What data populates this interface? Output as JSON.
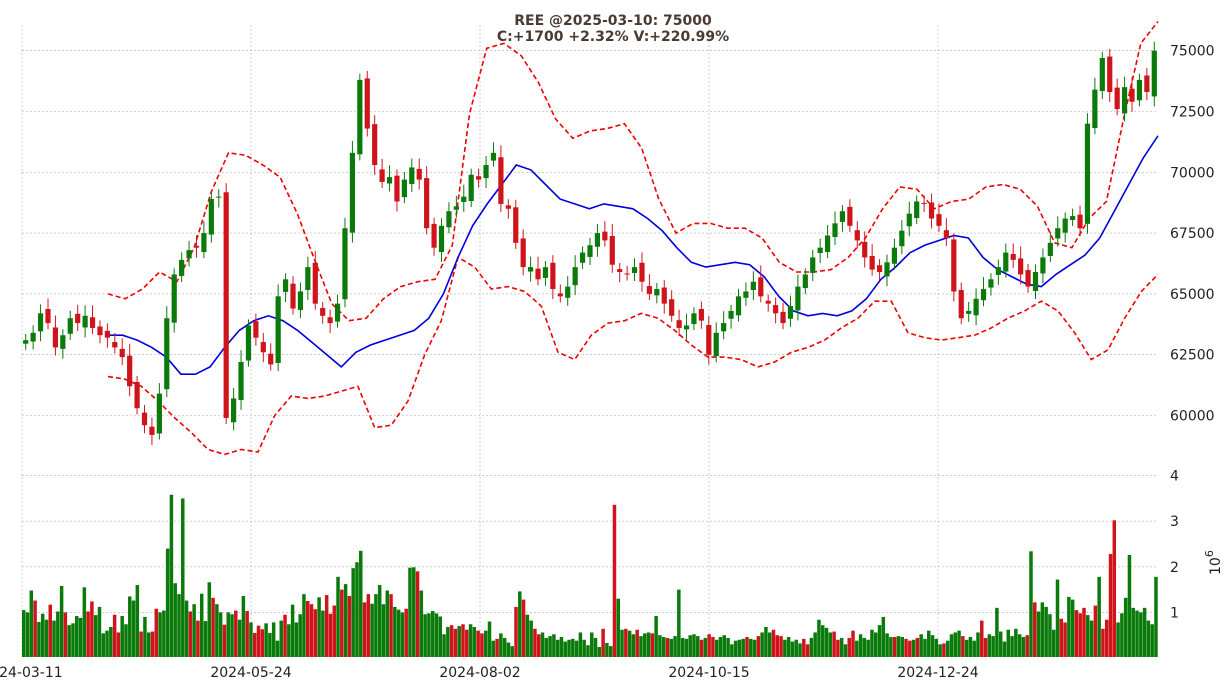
{
  "title": {
    "line1": "REE @2025-03-10: 75000",
    "line2": "C:+1700 +2.32% V:+220.99%"
  },
  "colors": {
    "up": "#0a7a0a",
    "down": "#d0141c",
    "ma": "#0000dd",
    "band": "#ee0000"
  },
  "chart_data": [
    {
      "type": "candlestick",
      "symbol": "REE",
      "x_labels": [
        "2024-03-11",
        "2024-05-24",
        "2024-08-02",
        "2024-10-15",
        "2024-12-24"
      ],
      "y_ticks": [
        "60000",
        "62500",
        "65000",
        "67500",
        "70000",
        "72500",
        "75000"
      ],
      "ylim": [
        58400,
        76100
      ],
      "grid": true,
      "series": [
        {
          "name": "",
          "style": "candles",
          "values": [
            63100,
            63400,
            64200,
            63800,
            62800,
            63300,
            64000,
            63800,
            64100,
            63600,
            63300,
            63200,
            62800,
            62400,
            61200,
            60300,
            59600,
            59200,
            60900,
            64000,
            65800,
            66400,
            66800,
            66900,
            67500,
            68900,
            69000,
            59900,
            60700,
            62200,
            63700,
            63200,
            62600,
            62100,
            64900,
            65600,
            64400,
            65100,
            66100,
            64600,
            64100,
            63800,
            64600,
            67700,
            70800,
            73800,
            71800,
            70300,
            69600,
            69800,
            68800,
            69700,
            70200,
            69700,
            67700,
            66900,
            67800,
            68400,
            68600,
            69000,
            69900,
            69700,
            70300,
            70800,
            68700,
            68500,
            67100,
            66100,
            66100,
            65600,
            66100,
            65200,
            64900,
            65300,
            66100,
            66700,
            67000,
            67500,
            67200,
            66200,
            65900,
            65800,
            66100,
            65500,
            65000,
            65200,
            64600,
            64100,
            63600,
            63700,
            64200,
            63900,
            62500,
            63400,
            63800,
            64300,
            64900,
            65100,
            65500,
            64900,
            64600,
            64200,
            63800,
            64500,
            65300,
            65800,
            66500,
            66900,
            67400,
            67900,
            68400,
            67800,
            67200,
            66500,
            66000,
            65900,
            66300,
            66900,
            67600,
            68300,
            68800,
            68700,
            68100,
            67800,
            67300,
            65100,
            64000,
            64300,
            64800,
            65200,
            65600,
            66100,
            66700,
            66400,
            65800,
            65300,
            65900,
            66500,
            67100,
            67700,
            68100,
            68200,
            67700,
            72000,
            73400,
            74700,
            73300,
            72600,
            73500,
            72900,
            73800,
            73300,
            75000
          ]
        },
        {
          "name": "",
          "style": "line",
          "color": "#0000dd",
          "values": [
            63300,
            63300,
            63100,
            62800,
            62400,
            61700,
            61700,
            62000,
            62800,
            63500,
            63900,
            64100,
            63900,
            63500,
            63000,
            62500,
            62000,
            62600,
            62900,
            63100,
            63300,
            63500,
            64000,
            65000,
            66500,
            67800,
            68700,
            69500,
            70300,
            70100,
            69500,
            68900,
            68700,
            68500,
            68700,
            68600,
            68500,
            68100,
            67600,
            66900,
            66300,
            66100,
            66200,
            66300,
            66200,
            65700,
            64900,
            64300,
            64100,
            64200,
            64100,
            64300,
            64800,
            65600,
            66100,
            66700,
            67000,
            67200,
            67400,
            67300,
            66500,
            66000,
            65700,
            65400,
            65300,
            65800,
            66200,
            66600,
            67300,
            68400,
            69500,
            70600,
            71500
          ]
        },
        {
          "name": "",
          "style": "dashed",
          "color": "#ee0000",
          "values": [
            65000,
            64800,
            65200,
            65900,
            65500,
            66900,
            69200,
            70800,
            70700,
            70300,
            69800,
            68300,
            66400,
            64600,
            63900,
            64000,
            64800,
            65300,
            65500,
            65600,
            67000,
            72400,
            75100,
            75300,
            74800,
            73700,
            72200,
            71400,
            71700,
            71800,
            72000,
            71000,
            68900,
            67500,
            67900,
            67900,
            67700,
            67700,
            67300,
            66300,
            65900,
            65900,
            66000,
            66500,
            67300,
            68500,
            69400,
            69300,
            68500,
            68800,
            68900,
            69400,
            69500,
            69300,
            68600,
            67100,
            66900,
            68100,
            68800,
            72200,
            75300,
            76200
          ]
        },
        {
          "name": "",
          "style": "dashed",
          "color": "#ee0000",
          "values": [
            61600,
            61500,
            61200,
            60600,
            59900,
            59300,
            58600,
            58400,
            58600,
            58500,
            60000,
            60800,
            60700,
            60800,
            61000,
            61200,
            59500,
            59600,
            60600,
            62500,
            63900,
            66500,
            66100,
            65200,
            65300,
            65100,
            64500,
            62600,
            62300,
            63300,
            63800,
            63900,
            64200,
            64000,
            63500,
            62900,
            62400,
            62400,
            62300,
            62000,
            62200,
            62600,
            62800,
            63100,
            63600,
            64000,
            64700,
            64700,
            63400,
            63200,
            63100,
            63200,
            63300,
            63600,
            64000,
            64300,
            64700,
            64300,
            63400,
            62300,
            62700,
            64000,
            65100,
            65800
          ]
        }
      ]
    },
    {
      "type": "bar",
      "ylabel": "10^6",
      "y_ticks": [
        "1",
        "2",
        "3",
        "4"
      ],
      "ylim": [
        0,
        4
      ],
      "grid": true,
      "series": [
        {
          "name": "",
          "values": [
            1.05,
            1.0,
            1.48,
            1.26,
            0.79,
            0.97,
            0.84,
            1.17,
            0.82,
            1.02,
            1.58,
            1.0,
            0.72,
            0.76,
            0.92,
            0.88,
            1.55,
            1.02,
            1.24,
            0.94,
            1.12,
            0.54,
            0.6,
            0.68,
            0.95,
            0.56,
            0.92,
            0.74,
            1.35,
            1.26,
            1.6,
            0.58,
            0.9,
            0.56,
            0.58,
            1.08,
            1.0,
            1.04,
            2.4,
            3.58,
            1.64,
            1.4,
            3.5,
            1.26,
            1.02,
            1.18,
            0.82,
            1.41,
            0.81,
            1.66,
            1.32,
            1.18,
            1.0,
            0.73,
            1.0,
            0.96,
            1.04,
            0.84,
            1.36,
            1.03,
            0.78,
            0.55,
            0.71,
            0.63,
            0.76,
            0.55,
            0.78,
            0.38,
            0.82,
            0.95,
            0.74,
            1.17,
            0.78,
            0.96,
            1.4,
            1.25,
            1.18,
            1.07,
            1.33,
            1.04,
            1.38,
            0.97,
            1.15,
            1.78,
            1.5,
            1.62,
            1.36,
            1.97,
            2.1,
            2.35,
            1.22,
            1.4,
            1.19,
            1.4,
            1.6,
            1.18,
            1.48,
            1.4,
            1.12,
            1.06,
            1.0,
            1.08,
            1.98,
            1.99,
            1.9,
            1.48,
            0.96,
            0.98,
            1.03,
            0.98,
            0.91,
            0.52,
            0.68,
            0.72,
            0.64,
            0.7,
            0.74,
            0.62,
            0.74,
            0.68,
            0.6,
            0.54,
            0.6,
            0.8,
            0.38,
            0.42,
            0.54,
            0.44,
            0.34,
            0.26,
            1.12,
            1.46,
            1.28,
            0.95,
            0.82,
            0.64,
            0.52,
            0.56,
            0.44,
            0.48,
            0.52,
            0.4,
            0.46,
            0.36,
            0.4,
            0.42,
            0.38,
            0.56,
            0.4,
            0.28,
            0.56,
            0.44,
            0.24,
            0.64,
            0.33,
            0.26,
            3.36,
            1.3,
            0.62,
            0.64,
            0.6,
            0.52,
            0.62,
            0.48,
            0.54,
            0.56,
            0.54,
            0.92,
            0.5,
            0.46,
            0.44,
            0.42,
            0.48,
            1.5,
            0.44,
            0.42,
            0.5,
            0.52,
            0.48,
            0.4,
            0.44,
            0.52,
            0.46,
            0.4,
            0.46,
            0.5,
            0.44,
            0.3,
            0.38,
            0.4,
            0.42,
            0.46,
            0.42,
            0.4,
            0.48,
            0.56,
            0.68,
            0.56,
            0.62,
            0.5,
            0.48,
            0.4,
            0.46,
            0.36,
            0.4,
            0.32,
            0.42,
            0.3,
            0.44,
            0.56,
            0.84,
            0.72,
            0.66,
            0.56,
            0.58,
            0.4,
            0.44,
            0.3,
            0.44,
            0.6,
            0.38,
            0.52,
            0.44,
            0.4,
            0.62,
            0.56,
            0.72,
            0.9,
            0.54,
            0.46,
            0.46,
            0.48,
            0.46,
            0.42,
            0.38,
            0.4,
            0.44,
            0.52,
            0.42,
            0.6,
            0.5,
            0.42,
            0.3,
            0.32,
            0.38,
            0.52,
            0.56,
            0.6,
            0.48,
            0.4,
            0.46,
            0.38,
            0.56,
            0.82,
            0.44,
            0.52,
            0.48,
            1.1,
            0.58,
            0.36,
            0.62,
            0.48,
            0.64,
            0.52,
            0.46,
            0.5,
            2.34,
            1.22,
            1.02,
            1.22,
            1.12,
            0.96,
            0.62,
            1.72,
            0.86,
            0.78,
            1.34,
            1.28,
            1.05,
            0.98,
            1.1,
            0.94,
            0.82,
            1.15,
            1.78,
            0.64,
            0.84,
            2.28,
            3.02,
            0.78,
            0.98,
            1.32,
            2.26,
            1.1,
            1.04,
            1.0,
            1.1,
            0.82,
            0.74,
            1.78
          ]
        }
      ]
    }
  ]
}
